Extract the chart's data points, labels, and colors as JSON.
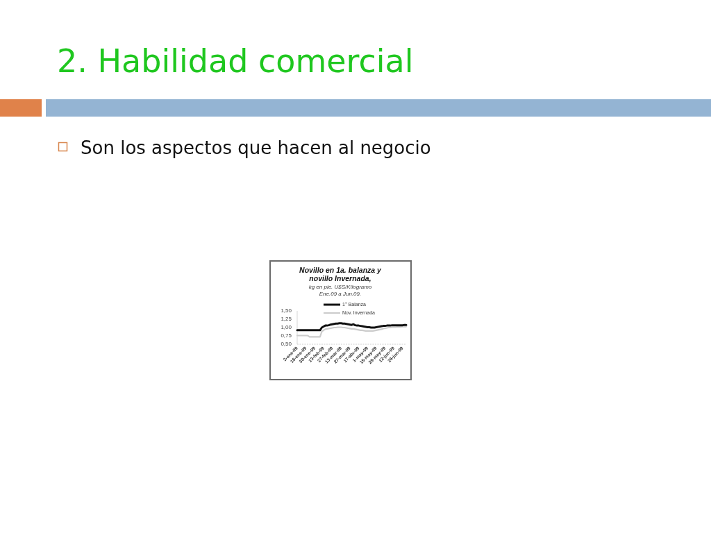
{
  "chart_data": {
    "type": "line",
    "title": "Novillo en 1a. balanza y\nnovillo Invernada,",
    "subtitle": "kg en pie. U$S/Kilogramo\nEne.09 a Jun.09.",
    "annotations": [
      "2. Habilidad comercial",
      "Son los aspectos que hacen al negocio"
    ],
    "categories": [
      "2-ene-09",
      null,
      null,
      null,
      null,
      "16-ene-09",
      null,
      null,
      null,
      null,
      "30-ene-09",
      null,
      null,
      null,
      null,
      "13-feb-09",
      null,
      null,
      null,
      null,
      "27-feb-09",
      null,
      null,
      null,
      null,
      "13-mar-09",
      null,
      null,
      null,
      null,
      "27-mar-09",
      null,
      null,
      null,
      null,
      "17-abr-09",
      null,
      null,
      null,
      null,
      "1-may-09",
      null,
      null,
      null,
      null,
      "15-may-09",
      null,
      null,
      null,
      null,
      "29-may-09",
      null,
      null,
      null,
      null,
      "12-jun-09",
      null,
      null,
      null,
      null,
      "26-jun-09",
      null,
      null
    ],
    "series": [
      {
        "name": "Nov. Invernada",
        "color": "#cccccc",
        "values": [
          0.76,
          0.76,
          0.76,
          0.76,
          0.76,
          0.76,
          0.76,
          0.72,
          0.72,
          0.72,
          0.72,
          0.72,
          0.72,
          0.72,
          0.88,
          0.92,
          0.95,
          0.96,
          0.97,
          0.98,
          0.99,
          1.0,
          1.0,
          1.01,
          1.01,
          1.01,
          1.0,
          1.0,
          0.99,
          0.98,
          0.97,
          0.96,
          0.96,
          0.95,
          0.94,
          0.93,
          0.92,
          0.92,
          0.91,
          0.9,
          0.9,
          0.9,
          0.9,
          0.9,
          0.91,
          0.92,
          0.93,
          0.94,
          0.95,
          0.97,
          0.98,
          0.99,
          1.0,
          1.0,
          1.01,
          1.01,
          1.01,
          1.02,
          1.02,
          1.02,
          1.03,
          1.03,
          1.03
        ]
      },
      {
        "name": "1° Balanza",
        "color": "#111111",
        "values": [
          0.92,
          0.92,
          0.92,
          0.92,
          0.92,
          0.92,
          0.92,
          0.92,
          0.92,
          0.92,
          0.92,
          0.92,
          0.92,
          0.92,
          1.0,
          1.03,
          1.06,
          1.06,
          1.07,
          1.09,
          1.1,
          1.11,
          1.12,
          1.12,
          1.13,
          1.13,
          1.12,
          1.12,
          1.11,
          1.1,
          1.09,
          1.08,
          1.1,
          1.07,
          1.06,
          1.06,
          1.05,
          1.04,
          1.03,
          1.02,
          1.01,
          1.01,
          1.0,
          1.0,
          1.0,
          1.01,
          1.02,
          1.03,
          1.04,
          1.05,
          1.05,
          1.06,
          1.06,
          1.06,
          1.07,
          1.07,
          1.07,
          1.07,
          1.07,
          1.07,
          1.07,
          1.08,
          1.08
        ]
      }
    ],
    "ylim": [
      0.5,
      1.5
    ],
    "yticks": [
      {
        "value": 0.5,
        "label": "0,50"
      },
      {
        "value": 0.75,
        "label": "0,75"
      },
      {
        "value": 1.0,
        "label": "1,00"
      },
      {
        "value": 1.25,
        "label": "1,25"
      },
      {
        "value": 1.5,
        "label": "1,50"
      }
    ],
    "legend": "top"
  }
}
